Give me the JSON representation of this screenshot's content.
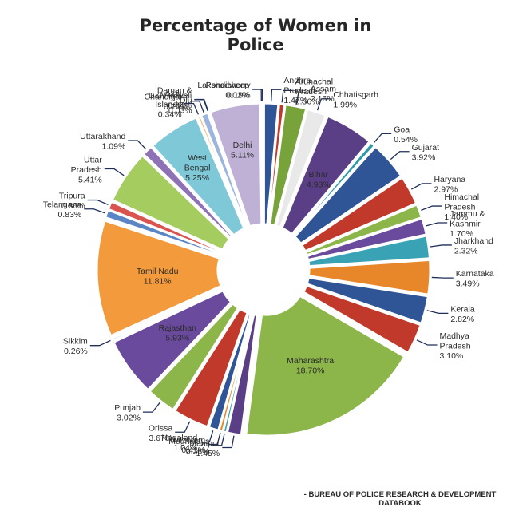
{
  "chart_data": {
    "type": "pie",
    "title": "Percentage of Women in Police",
    "source": "- BUREAU OF POLICE RESEARCH & DEVELOPMENT DATABOOK",
    "slices": [
      {
        "label": "Andhra Pradesh",
        "pct": "1.47%",
        "value": 1.47,
        "color": "#2f5597"
      },
      {
        "label": "Arunachal Pradesh",
        "pct": "0.56%",
        "value": 0.56,
        "color": "#c0392b"
      },
      {
        "label": "Assam",
        "pct": "2.16%",
        "value": 2.16,
        "color": "#77a33a"
      },
      {
        "label": "Chhatisgarh",
        "pct": "1.99%",
        "value": 1.99,
        "color": "#e9e9e9"
      },
      {
        "label": "Bihar",
        "pct": "4.93%",
        "value": 4.93,
        "color": "#5b3f86"
      },
      {
        "label": "Goa",
        "pct": "0.54%",
        "value": 0.54,
        "color": "#2e9aa8"
      },
      {
        "label": "Gujarat",
        "pct": "3.92%",
        "value": 3.92,
        "color": "#2f5597"
      },
      {
        "label": "Haryana",
        "pct": "2.97%",
        "value": 2.97,
        "color": "#c0392b"
      },
      {
        "label": "Himachal Pradesh",
        "pct": "1.40%",
        "value": 1.4,
        "color": "#8db64a"
      },
      {
        "label": "Jammu & Kashmir",
        "pct": "1.70%",
        "value": 1.7,
        "color": "#6a4a9c"
      },
      {
        "label": "Jharkhand",
        "pct": "2.32%",
        "value": 2.32,
        "color": "#3aa2b5"
      },
      {
        "label": "Karnataka",
        "pct": "3.49%",
        "value": 3.49,
        "color": "#e8862a"
      },
      {
        "label": "Kerala",
        "pct": "2.82%",
        "value": 2.82,
        "color": "#2f5597"
      },
      {
        "label": "Madhya Pradesh",
        "pct": "3.10%",
        "value": 3.1,
        "color": "#c0392b"
      },
      {
        "label": "Maharashtra",
        "pct": "18.70%",
        "value": 18.7,
        "color": "#8db64a"
      },
      {
        "label": "Manipur",
        "pct": "1.45%",
        "value": 1.45,
        "color": "#5b3f86"
      },
      {
        "label": "Meghalaya",
        "pct": "0.38%",
        "value": 0.38,
        "color": "#3aa2b5"
      },
      {
        "label": "Mizoram",
        "pct": "0.41%",
        "value": 0.41,
        "color": "#e8862a"
      },
      {
        "label": "Nagaland",
        "pct": "1.04%",
        "value": 1.04,
        "color": "#2f5597"
      },
      {
        "label": "Orissa",
        "pct": "3.67%",
        "value": 3.67,
        "color": "#c0392b"
      },
      {
        "label": "Punjab",
        "pct": "3.02%",
        "value": 3.02,
        "color": "#8db64a"
      },
      {
        "label": "Rajasthan",
        "pct": "5.93%",
        "value": 5.93,
        "color": "#6a4a9c"
      },
      {
        "label": "Sikkim",
        "pct": "0.26%",
        "value": 0.26,
        "color": "#3aa2b5"
      },
      {
        "label": "Tamil Nadu",
        "pct": "11.81%",
        "value": 11.81,
        "color": "#f39a3c"
      },
      {
        "label": "Telangana",
        "pct": "0.83%",
        "value": 0.83,
        "color": "#5b86c5"
      },
      {
        "label": "Tripura",
        "pct": "0.86%",
        "value": 0.86,
        "color": "#d9534f"
      },
      {
        "label": "Uttar Pradesh",
        "pct": "5.41%",
        "value": 5.41,
        "color": "#a4cc5e"
      },
      {
        "label": "Uttarakhand",
        "pct": "1.09%",
        "value": 1.09,
        "color": "#8e72b6"
      },
      {
        "label": "West Bengal",
        "pct": "5.25%",
        "value": 5.25,
        "color": "#7ec8d8"
      },
      {
        "label": "A&N Islands",
        "pct": "0.34%",
        "value": 0.34,
        "color": "#f5b06a"
      },
      {
        "label": "Chandigarh",
        "pct": "0.76%",
        "value": 0.76,
        "color": "#9bb5de"
      },
      {
        "label": "D&N Haveli",
        "pct": "0.04%",
        "value": 0.04,
        "color": "#e59a98"
      },
      {
        "label": "Daman & Diu",
        "pct": "0.03%",
        "value": 0.03,
        "color": "#c6dc9a"
      },
      {
        "label": "Delhi",
        "pct": "5.11%",
        "value": 5.11,
        "color": "#bfb1d6"
      },
      {
        "label": "Lakshadweep",
        "pct": "0.02%",
        "value": 0.02,
        "color": "#a9dbe6"
      },
      {
        "label": "Pondicherry",
        "pct": "0.19%",
        "value": 0.19,
        "color": "#f7c28f"
      }
    ]
  }
}
